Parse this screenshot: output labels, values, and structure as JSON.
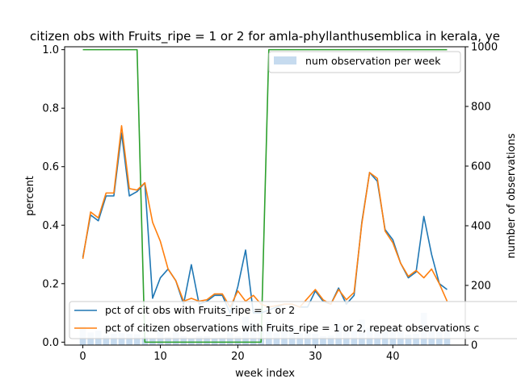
{
  "chart_data": {
    "type": "line",
    "title": "citizen obs with Fruits_ripe = 1 or 2 for amla-phyllanthusemblica in kerala, ye",
    "xlabel": "week index",
    "ylabel": "percent",
    "y2label": "number of observations",
    "xlim": [
      -2.35,
      49.35
    ],
    "ylim": [
      -0.01,
      1.01
    ],
    "y2lim": [
      0,
      1000
    ],
    "xticks": [
      0,
      10,
      20,
      30,
      40
    ],
    "yticks": [
      0.0,
      0.2,
      0.4,
      0.6,
      0.8,
      1.0
    ],
    "y2ticks": [
      0,
      200,
      400,
      600,
      800,
      1000
    ],
    "x": [
      0,
      1,
      2,
      3,
      4,
      5,
      6,
      7,
      8,
      9,
      10,
      11,
      12,
      13,
      14,
      15,
      16,
      17,
      18,
      19,
      20,
      21,
      22,
      23,
      24,
      25,
      26,
      27,
      28,
      29,
      30,
      31,
      32,
      33,
      34,
      35,
      36,
      37,
      38,
      39,
      40,
      41,
      42,
      43,
      44,
      45,
      46,
      47
    ],
    "series": [
      {
        "name": "pct of cit obs with Fruits_ripe = 1 or 2",
        "color": "#1f77b4",
        "values": [
          0.29,
          0.435,
          0.415,
          0.5,
          0.5,
          0.715,
          0.5,
          0.515,
          0.545,
          0.15,
          0.22,
          0.25,
          0.21,
          0.13,
          0.265,
          0.13,
          0.14,
          0.16,
          0.16,
          0.1,
          0.19,
          0.315,
          0.1,
          0.1,
          0.11,
          0.12,
          0.13,
          0.13,
          0.12,
          0.12,
          0.175,
          0.14,
          0.13,
          0.185,
          0.13,
          0.16,
          0.41,
          0.58,
          0.55,
          0.385,
          0.35,
          0.27,
          0.22,
          0.24,
          0.43,
          0.3,
          0.2,
          0.18
        ]
      },
      {
        "name": "pct of citizen observations with Fruits_ripe = 1 or 2, repeat observations c",
        "color": "#ff7f0e",
        "values": [
          0.285,
          0.445,
          0.425,
          0.51,
          0.51,
          0.74,
          0.525,
          0.52,
          0.545,
          0.41,
          0.345,
          0.25,
          0.21,
          0.14,
          0.15,
          0.14,
          0.145,
          0.165,
          0.165,
          0.12,
          0.175,
          0.14,
          0.16,
          0.13,
          0.12,
          0.125,
          0.13,
          0.13,
          0.12,
          0.15,
          0.18,
          0.145,
          0.13,
          0.18,
          0.145,
          0.17,
          0.405,
          0.58,
          0.56,
          0.38,
          0.34,
          0.27,
          0.225,
          0.245,
          0.22,
          0.25,
          0.2,
          0.14
        ]
      },
      {
        "name": "",
        "color": "#2ca02c",
        "values": [
          1,
          1,
          1,
          1,
          1,
          1,
          1,
          1,
          0,
          0,
          0,
          0,
          0,
          0,
          0,
          0,
          0,
          0,
          0,
          0,
          0,
          0,
          0,
          0,
          1,
          1,
          1,
          1,
          1,
          1,
          1,
          1,
          1,
          1,
          1,
          1,
          1,
          1,
          1,
          1,
          1,
          1,
          1,
          1,
          1,
          1,
          1,
          1
        ]
      }
    ],
    "bars": {
      "name": "num observation per week",
      "color": "#c6dbef",
      "axis": "right",
      "values": [
        62,
        42,
        48,
        32,
        38,
        40,
        38,
        36,
        28,
        25,
        58,
        28,
        42,
        30,
        22,
        30,
        30,
        22,
        25,
        40,
        30,
        95,
        74,
        55,
        78,
        40,
        50,
        60,
        40,
        48,
        38,
        30,
        32,
        72,
        60,
        48,
        85,
        58,
        50,
        48,
        55,
        45,
        35,
        38,
        108,
        65,
        45,
        50
      ]
    },
    "legend_upper": "upper-right",
    "legend_lower": "lower-left"
  }
}
